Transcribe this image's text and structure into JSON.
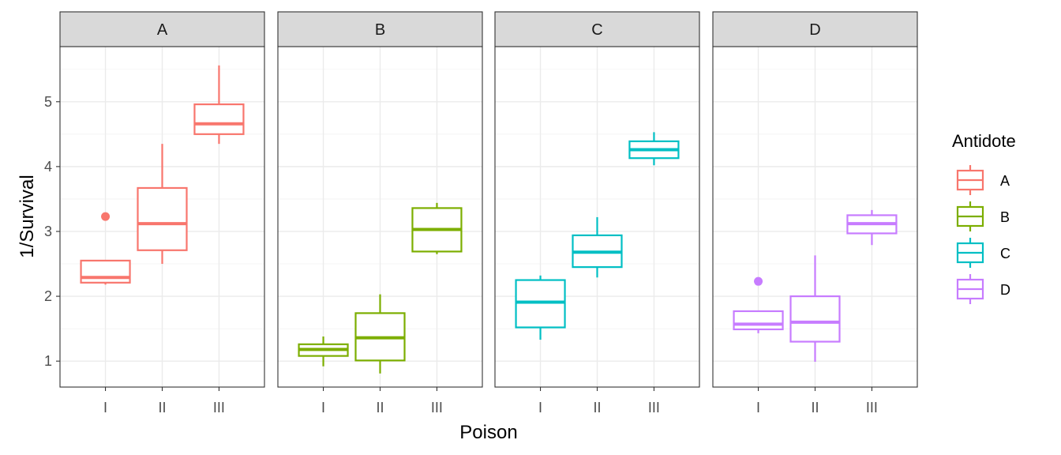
{
  "chart_data": {
    "type": "boxplot",
    "facet_by": "Antidote",
    "facets": [
      "A",
      "B",
      "C",
      "D"
    ],
    "categories": [
      "I",
      "II",
      "III"
    ],
    "xlabel": "Poison",
    "ylabel": "1/Survival",
    "ylim": [
      0.6,
      5.85
    ],
    "yticks": [
      1,
      2,
      3,
      4,
      5
    ],
    "legend": {
      "title": "Antidote",
      "position": "right",
      "entries": [
        "A",
        "B",
        "C",
        "D"
      ]
    },
    "colors": {
      "A": "#F8766D",
      "B": "#7CAE00",
      "C": "#00BFC4",
      "D": "#C77CFF"
    },
    "grid": true,
    "series": [
      {
        "name": "A",
        "boxes": [
          {
            "x": "I",
            "lower": 2.18,
            "q1": 2.21,
            "median": 2.29,
            "q3": 2.55,
            "upper": 2.55,
            "outliers": [
              3.23
            ]
          },
          {
            "x": "II",
            "lower": 2.5,
            "q1": 2.71,
            "median": 3.12,
            "q3": 3.67,
            "upper": 4.35,
            "outliers": []
          },
          {
            "x": "III",
            "lower": 4.35,
            "q1": 4.5,
            "median": 4.66,
            "q3": 4.96,
            "upper": 5.56,
            "outliers": []
          }
        ]
      },
      {
        "name": "B",
        "boxes": [
          {
            "x": "I",
            "lower": 0.92,
            "q1": 1.08,
            "median": 1.18,
            "q3": 1.26,
            "upper": 1.38,
            "outliers": []
          },
          {
            "x": "II",
            "lower": 0.81,
            "q1": 1.01,
            "median": 1.36,
            "q3": 1.74,
            "upper": 2.03,
            "outliers": []
          },
          {
            "x": "III",
            "lower": 2.65,
            "q1": 2.69,
            "median": 3.03,
            "q3": 3.36,
            "upper": 3.44,
            "outliers": []
          }
        ]
      },
      {
        "name": "C",
        "boxes": [
          {
            "x": "I",
            "lower": 1.33,
            "q1": 1.52,
            "median": 1.91,
            "q3": 2.25,
            "upper": 2.32,
            "outliers": []
          },
          {
            "x": "II",
            "lower": 2.29,
            "q1": 2.45,
            "median": 2.68,
            "q3": 2.94,
            "upper": 3.22,
            "outliers": []
          },
          {
            "x": "III",
            "lower": 4.02,
            "q1": 4.13,
            "median": 4.26,
            "q3": 4.39,
            "upper": 4.53,
            "outliers": []
          }
        ]
      },
      {
        "name": "D",
        "boxes": [
          {
            "x": "I",
            "lower": 1.43,
            "q1": 1.49,
            "median": 1.57,
            "q3": 1.77,
            "upper": 1.77,
            "outliers": [
              2.23
            ]
          },
          {
            "x": "II",
            "lower": 0.99,
            "q1": 1.3,
            "median": 1.6,
            "q3": 2.0,
            "upper": 2.63,
            "outliers": []
          },
          {
            "x": "III",
            "lower": 2.79,
            "q1": 2.97,
            "median": 3.12,
            "q3": 3.25,
            "upper": 3.33,
            "outliers": []
          }
        ]
      }
    ]
  }
}
